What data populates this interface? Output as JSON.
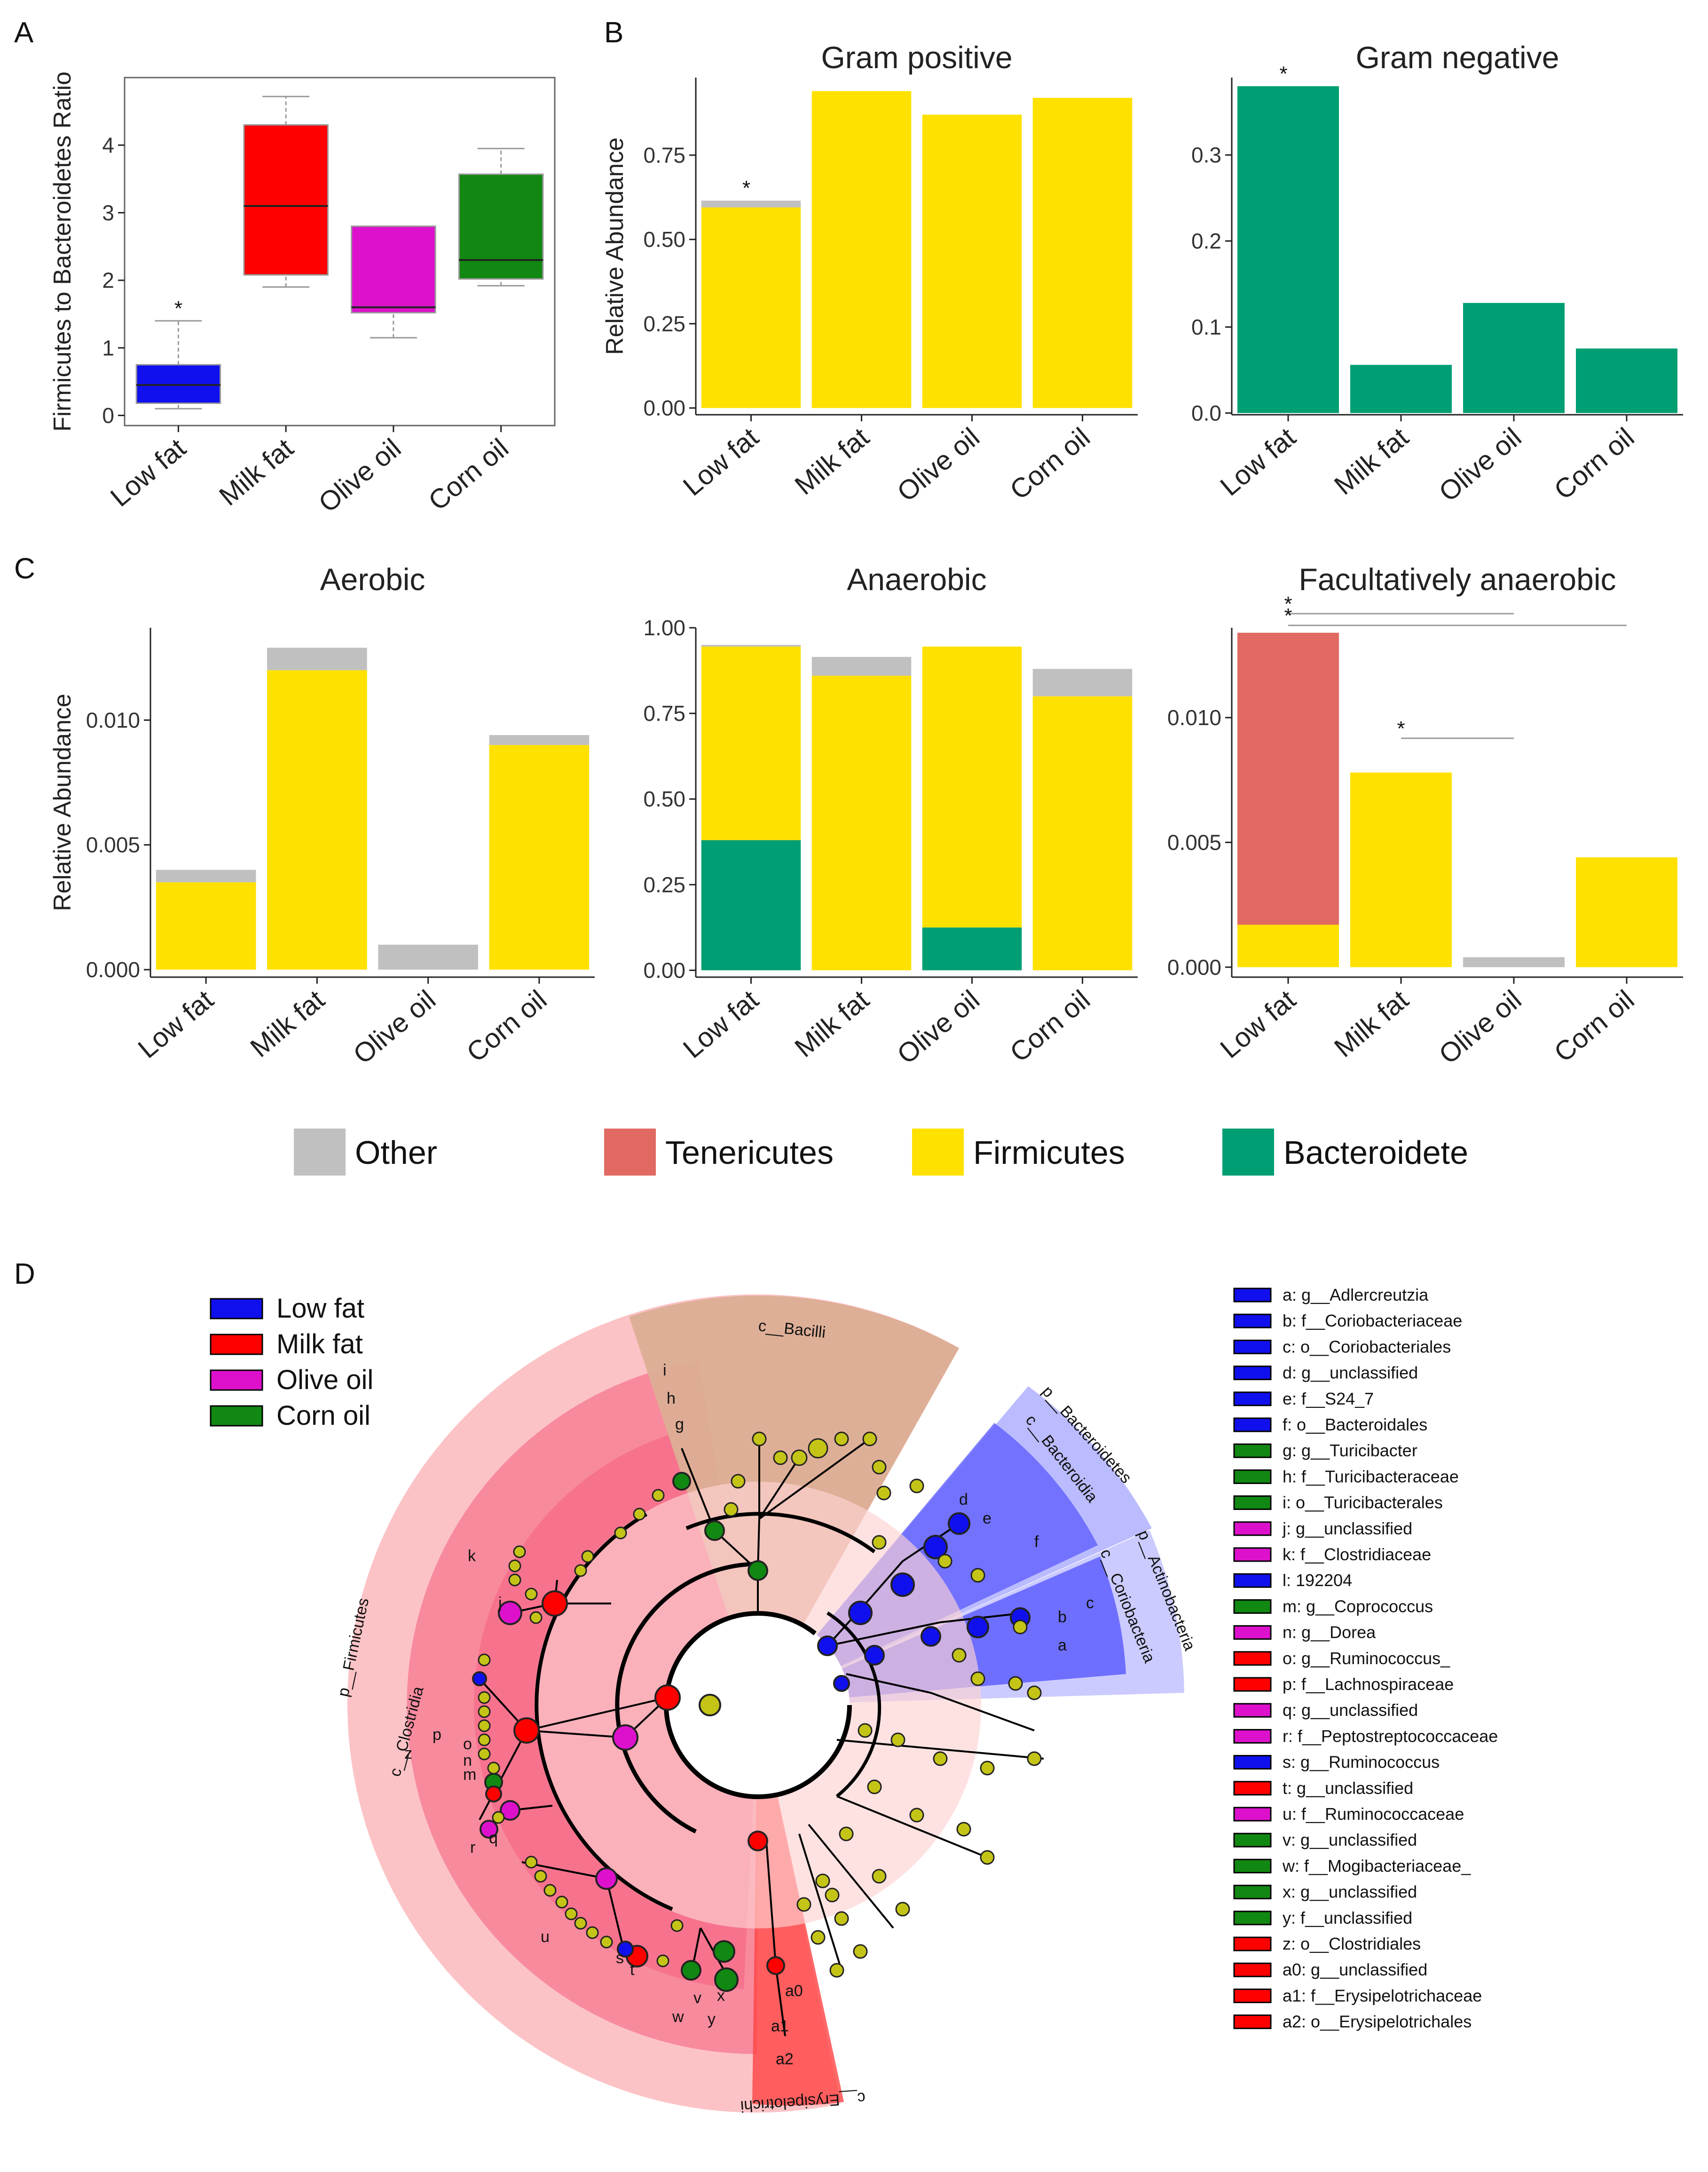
{
  "colors": {
    "low_fat": "#1010ee",
    "milk_fat": "#ff0000",
    "olive_oil": "#dd11cc",
    "corn_oil": "#118811",
    "other": "#c0c0c0",
    "tenericutes": "#e06a62",
    "firmicutes": "#ffe100",
    "bacteroidete": "#009e73"
  },
  "panel_letters": [
    "A",
    "B",
    "C",
    "D"
  ],
  "chart_data": [
    {
      "id": "A",
      "type": "boxplot",
      "ylabel": "Firmicutes to Bacteroidetes Ratio",
      "categories": [
        "Low fat",
        "Milk fat",
        "Olive oil",
        "Corn oil"
      ],
      "yticks": [
        "0",
        "1",
        "2",
        "3",
        "4"
      ],
      "ylim": [
        -0.15,
        5.0
      ],
      "boxes": [
        {
          "min": 0.1,
          "q1": 0.18,
          "median": 0.45,
          "q3": 0.75,
          "max": 1.4,
          "color_key": "low_fat",
          "sig": "*"
        },
        {
          "min": 1.9,
          "q1": 2.08,
          "median": 3.1,
          "q3": 4.3,
          "max": 4.72,
          "color_key": "milk_fat",
          "sig": ""
        },
        {
          "min": 1.15,
          "q1": 1.52,
          "median": 1.6,
          "q3": 2.8,
          "max": 2.8,
          "color_key": "olive_oil",
          "sig": ""
        },
        {
          "min": 1.92,
          "q1": 2.02,
          "median": 2.3,
          "q3": 3.57,
          "max": 3.95,
          "color_key": "corn_oil",
          "sig": ""
        }
      ]
    },
    {
      "id": "B1",
      "type": "bar",
      "title": "Gram positive",
      "ylabel": "Relative Abundance",
      "categories": [
        "Low fat",
        "Milk fat",
        "Olive oil",
        "Corn oil"
      ],
      "yticks": [
        "0.00",
        "0.25",
        "0.50",
        "0.75"
      ],
      "ylim": [
        -0.02,
        0.98
      ],
      "series": [
        {
          "name": "Firmicutes",
          "color_key": "firmicutes",
          "values": [
            0.595,
            0.94,
            0.87,
            0.92
          ]
        },
        {
          "name": "Other",
          "color_key": "other",
          "values": [
            0.02,
            0,
            0,
            0
          ]
        }
      ],
      "sig_labels": [
        "*",
        "",
        "",
        ""
      ]
    },
    {
      "id": "B2",
      "type": "bar",
      "title": "Gram negative",
      "ylabel": "",
      "categories": [
        "Low fat",
        "Milk fat",
        "Olive oil",
        "Corn oil"
      ],
      "yticks": [
        "0.0",
        "0.1",
        "0.2",
        "0.3"
      ],
      "ylim": [
        -0.002,
        0.39
      ],
      "series": [
        {
          "name": "Bacteroidete",
          "color_key": "bacteroidete",
          "values": [
            0.38,
            0.056,
            0.128,
            0.075
          ]
        }
      ],
      "sig_labels": [
        "*",
        "",
        "",
        ""
      ]
    },
    {
      "id": "C1",
      "type": "bar",
      "title": "Aerobic",
      "ylabel": "Relative Abundance",
      "categories": [
        "Low fat",
        "Milk fat",
        "Olive oil",
        "Corn oil"
      ],
      "yticks": [
        "0.000",
        "0.005",
        "0.010"
      ],
      "ylim": [
        -0.0003,
        0.0137
      ],
      "series": [
        {
          "name": "Firmicutes",
          "color_key": "firmicutes",
          "values": [
            0.0035,
            0.012,
            0,
            0.009
          ]
        },
        {
          "name": "Other",
          "color_key": "other",
          "values": [
            0.0005,
            0.0009,
            0.001,
            0.0004
          ]
        }
      ],
      "sig_labels": [
        "",
        "",
        "",
        ""
      ]
    },
    {
      "id": "C2",
      "type": "bar",
      "title": "Anaerobic",
      "ylabel": "",
      "categories": [
        "Low fat",
        "Milk fat",
        "Olive oil",
        "Corn oil"
      ],
      "yticks": [
        "0.00",
        "0.25",
        "0.50",
        "0.75",
        "1.00"
      ],
      "ylim": [
        -0.02,
        1.0
      ],
      "series": [
        {
          "name": "Bacteroidete",
          "color_key": "bacteroidete",
          "values": [
            0.38,
            0,
            0.125,
            0
          ]
        },
        {
          "name": "Firmicutes",
          "color_key": "firmicutes",
          "values": [
            0.565,
            0.86,
            0.82,
            0.8
          ]
        },
        {
          "name": "Other",
          "color_key": "other",
          "values": [
            0.005,
            0.055,
            0,
            0.08
          ]
        }
      ],
      "sig_labels": [
        "",
        "",
        "",
        ""
      ]
    },
    {
      "id": "C3",
      "type": "bar",
      "title": "Facultatively anaerobic",
      "ylabel": "",
      "categories": [
        "Low fat",
        "Milk fat",
        "Olive oil",
        "Corn oil"
      ],
      "yticks": [
        "0.000",
        "0.005",
        "0.010"
      ],
      "ylim": [
        -0.0004,
        0.0136
      ],
      "series": [
        {
          "name": "Firmicutes",
          "color_key": "firmicutes",
          "values": [
            0.0017,
            0.0078,
            0,
            0.0044
          ]
        },
        {
          "name": "Tenericutes",
          "color_key": "tenericutes",
          "values": [
            0.0117,
            0,
            0,
            0
          ]
        },
        {
          "name": "Other",
          "color_key": "other",
          "values": [
            0,
            0,
            0.0004,
            0
          ]
        }
      ],
      "brackets": [
        {
          "from": 0,
          "to": 2,
          "label": "*",
          "level": 2
        },
        {
          "from": 0,
          "to": 3,
          "label": "*",
          "level": 1
        },
        {
          "from": 1,
          "to": 2,
          "label": "*",
          "level": 0
        }
      ]
    }
  ],
  "phylum_legend": [
    {
      "label": "Other",
      "color_key": "other"
    },
    {
      "label": "Tenericutes",
      "color_key": "tenericutes"
    },
    {
      "label": "Firmicutes",
      "color_key": "firmicutes"
    },
    {
      "label": "Bacteroidete",
      "color_key": "bacteroidete"
    }
  ],
  "cladogram": {
    "group_legend": [
      {
        "label": "Low fat",
        "color_key": "low_fat"
      },
      {
        "label": "Milk fat",
        "color_key": "milk_fat"
      },
      {
        "label": "Olive oil",
        "color_key": "olive_oil"
      },
      {
        "label": "Corn oil",
        "color_key": "corn_oil"
      }
    ],
    "taxa_legend": [
      {
        "label": "a: g__Adlercreutzia",
        "color_key": "low_fat"
      },
      {
        "label": "b: f__Coriobacteriaceae",
        "color_key": "low_fat"
      },
      {
        "label": "c: o__Coriobacteriales",
        "color_key": "low_fat"
      },
      {
        "label": "d: g__unclassified",
        "color_key": "low_fat"
      },
      {
        "label": "e: f__S24_7",
        "color_key": "low_fat"
      },
      {
        "label": "f: o__Bacteroidales",
        "color_key": "low_fat"
      },
      {
        "label": "g: g__Turicibacter",
        "color_key": "corn_oil"
      },
      {
        "label": "h: f__Turicibacteraceae",
        "color_key": "corn_oil"
      },
      {
        "label": "i: o__Turicibacterales",
        "color_key": "corn_oil"
      },
      {
        "label": "j: g__unclassified",
        "color_key": "olive_oil"
      },
      {
        "label": "k: f__Clostridiaceae",
        "color_key": "olive_oil"
      },
      {
        "label": "l: 192204",
        "color_key": "low_fat"
      },
      {
        "label": "m: g__Coprococcus",
        "color_key": "corn_oil"
      },
      {
        "label": "n: g__Dorea",
        "color_key": "olive_oil"
      },
      {
        "label": "o: g__Ruminococcus_",
        "color_key": "milk_fat"
      },
      {
        "label": "p: f__Lachnospiraceae",
        "color_key": "milk_fat"
      },
      {
        "label": "q: g__unclassified",
        "color_key": "olive_oil"
      },
      {
        "label": "r: f__Peptostreptococcaceae",
        "color_key": "olive_oil"
      },
      {
        "label": "s: g__Ruminococcus",
        "color_key": "low_fat"
      },
      {
        "label": "t: g__unclassified",
        "color_key": "milk_fat"
      },
      {
        "label": "u: f__Ruminococcaceae",
        "color_key": "olive_oil"
      },
      {
        "label": "v: g__unclassified",
        "color_key": "corn_oil"
      },
      {
        "label": "w: f__Mogibacteriaceae_",
        "color_key": "corn_oil"
      },
      {
        "label": "x: g__unclassified",
        "color_key": "corn_oil"
      },
      {
        "label": "y: f__unclassified",
        "color_key": "corn_oil"
      },
      {
        "label": "z: o__Clostridiales",
        "color_key": "milk_fat"
      },
      {
        "label": "a0: g__unclassified",
        "color_key": "milk_fat"
      },
      {
        "label": "a1: f__Erysipelotrichaceae",
        "color_key": "milk_fat"
      },
      {
        "label": "a2: o__Erysipelotrichales",
        "color_key": "milk_fat"
      }
    ],
    "clade_labels": {
      "bacilli": "c__Bacilli",
      "firmicutes": "p__Firmicutes",
      "clostridia": "c__Clostridia",
      "bacteroidetes_p": "p__Bacteroidetes",
      "bacteroidia": "c__Bacteroidia",
      "actinobacteria": "p__Actinobacteria",
      "coriobacteria": "c__Coriobacteria",
      "erysipelotrichi": "c__Erysipelotrichi"
    },
    "node_letters": [
      "i",
      "h",
      "g",
      "k",
      "j",
      "p",
      "z",
      "o",
      "m",
      "n",
      "q",
      "r",
      "u",
      "s",
      "t",
      "w",
      "y",
      "v",
      "x",
      "a0",
      "a1",
      "a2",
      "e",
      "d",
      "f",
      "c",
      "b",
      "a"
    ]
  }
}
